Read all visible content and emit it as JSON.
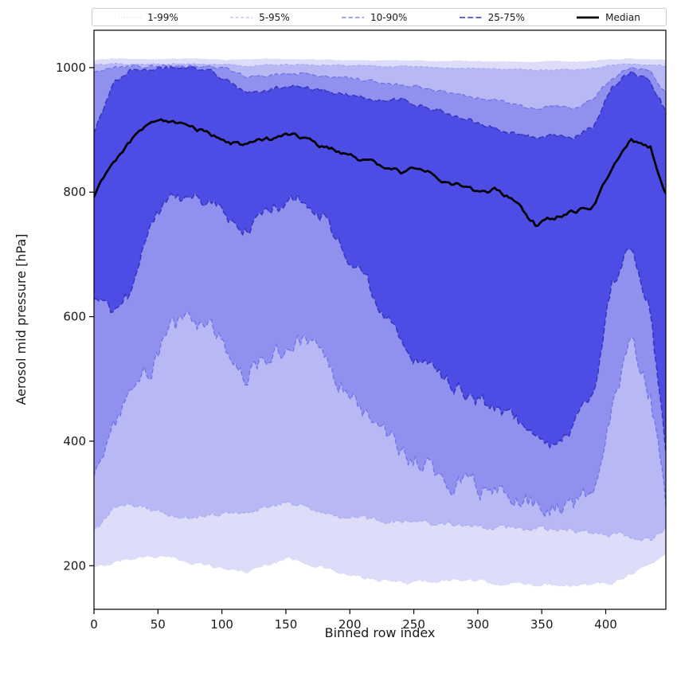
{
  "chart_data": {
    "type": "band",
    "title": "",
    "xlabel": "Binned row index",
    "ylabel": "Aerosol mid pressure [hPa]",
    "xlim": [
      0,
      447
    ],
    "ylim": [
      130,
      1060
    ],
    "xticks": [
      0,
      50,
      100,
      150,
      200,
      250,
      300,
      350,
      400
    ],
    "yticks": [
      200,
      400,
      600,
      800,
      1000
    ],
    "grid": false,
    "legend_position": "top-outside-horizontal",
    "x": [
      0,
      15,
      30,
      45,
      60,
      75,
      90,
      105,
      120,
      135,
      150,
      165,
      180,
      195,
      210,
      225,
      240,
      255,
      270,
      285,
      300,
      315,
      330,
      345,
      360,
      375,
      390,
      405,
      420,
      435,
      447
    ],
    "series": {
      "q1": [
        195,
        205,
        212,
        216,
        212,
        206,
        200,
        194,
        190,
        202,
        212,
        206,
        196,
        186,
        180,
        176,
        173,
        174,
        176,
        177,
        175,
        172,
        170,
        170,
        170,
        169,
        169,
        174,
        188,
        202,
        218
      ],
      "q5": [
        255,
        290,
        300,
        288,
        282,
        278,
        282,
        286,
        282,
        296,
        302,
        296,
        288,
        280,
        276,
        272,
        270,
        268,
        267,
        266,
        264,
        262,
        260,
        258,
        257,
        256,
        254,
        252,
        246,
        240,
        262
      ],
      "q10": [
        345,
        420,
        470,
        520,
        575,
        600,
        585,
        545,
        505,
        530,
        555,
        560,
        530,
        490,
        450,
        415,
        385,
        362,
        345,
        330,
        322,
        312,
        304,
        298,
        295,
        298,
        310,
        460,
        560,
        470,
        295
      ],
      "q25": [
        630,
        598,
        645,
        755,
        790,
        795,
        785,
        758,
        742,
        765,
        788,
        790,
        755,
        712,
        668,
        612,
        560,
        525,
        505,
        482,
        465,
        452,
        435,
        405,
        400,
        425,
        470,
        655,
        712,
        612,
        380
      ],
      "median": [
        795,
        845,
        885,
        915,
        915,
        905,
        895,
        878,
        876,
        884,
        892,
        888,
        872,
        862,
        850,
        843,
        833,
        838,
        822,
        812,
        800,
        803,
        782,
        748,
        758,
        768,
        776,
        842,
        884,
        872,
        798
      ],
      "q75": [
        895,
        975,
        997,
        1000,
        1000,
        1000,
        996,
        978,
        958,
        963,
        972,
        968,
        962,
        957,
        951,
        948,
        950,
        940,
        932,
        922,
        912,
        902,
        893,
        888,
        893,
        887,
        906,
        968,
        995,
        978,
        928
      ],
      "q90": [
        993,
        1002,
        1002,
        1002,
        1002,
        1002,
        1002,
        1000,
        983,
        987,
        992,
        991,
        988,
        985,
        980,
        976,
        972,
        968,
        962,
        957,
        952,
        947,
        941,
        935,
        940,
        935,
        948,
        985,
        1000,
        996,
        958
      ],
      "q95": [
        1004,
        1006,
        1006,
        1006,
        1006,
        1006,
        1006,
        1005,
        1003,
        1004,
        1005,
        1005,
        1004,
        1004,
        1003,
        1002,
        1002,
        1001,
        1000,
        1000,
        999,
        998,
        997,
        996,
        997,
        996,
        999,
        1004,
        1006,
        1005,
        1002
      ],
      "q99": [
        1012,
        1014,
        1014,
        1013,
        1014,
        1014,
        1013,
        1012,
        1013,
        1014,
        1013,
        1013,
        1012,
        1012,
        1012,
        1011,
        1011,
        1011,
        1010,
        1011,
        1010,
        1010,
        1009,
        1009,
        1010,
        1009,
        1011,
        1013,
        1014,
        1013,
        1012
      ]
    },
    "jitter": {
      "q1": 5,
      "q5": 7,
      "q10": 28,
      "q25": 20,
      "median": 6.5,
      "q75": 6,
      "q90": 4.5,
      "q95": 2,
      "q99": 1.2
    },
    "stack_order": [
      "q1",
      "q5",
      "q10",
      "q25",
      "median",
      "q75",
      "q90",
      "q95",
      "q99"
    ],
    "bands": [
      {
        "label": "1-99%",
        "lower": "q1",
        "upper": "q99",
        "fill": "#2a2ae0",
        "fill_alpha": 0.16,
        "edge_color": "#c9cdf4",
        "edge_dash": "1 2.4",
        "edge_width": 1
      },
      {
        "label": "5-95%",
        "lower": "q5",
        "upper": "q95",
        "fill": "#2a2ae0",
        "fill_alpha": 0.2,
        "edge_color": "#a3a8ef",
        "edge_dash": "4 2.6",
        "edge_width": 1
      },
      {
        "label": "10-90%",
        "lower": "q10",
        "upper": "q90",
        "fill": "#2a2ae0",
        "fill_alpha": 0.28,
        "edge_color": "#6b6fe8",
        "edge_dash": "5.5 3",
        "edge_width": 1.2
      },
      {
        "label": "25-75%",
        "lower": "q25",
        "upper": "q75",
        "fill": "#2a2ae0",
        "fill_alpha": 0.65,
        "edge_color": "#3434bd",
        "edge_dash": "7 3.2",
        "edge_width": 1.5
      }
    ],
    "median_line": {
      "label": "Median",
      "key": "median",
      "color": "#000000",
      "width": 2.7
    }
  }
}
